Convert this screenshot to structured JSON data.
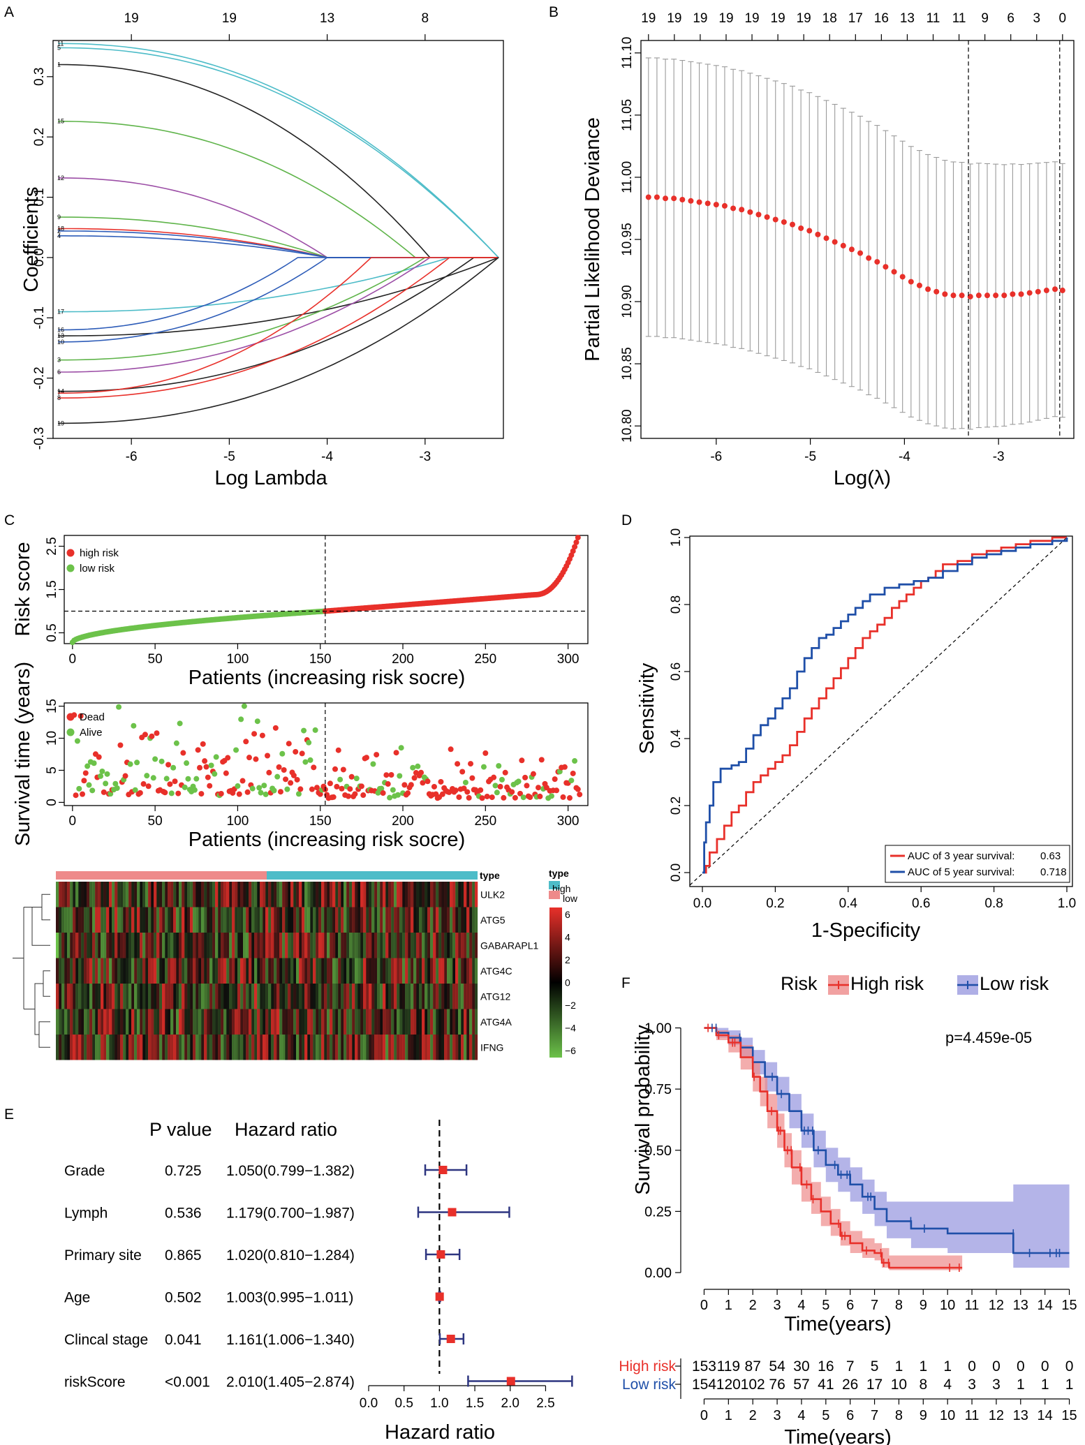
{
  "panels": {
    "a": "A",
    "b": "B",
    "c": "C",
    "d": "D",
    "e": "E",
    "f": "F"
  },
  "colors": {
    "red": "#e8302a",
    "green": "#6cc24a",
    "blue": "#1f4fa8",
    "cyan": "#4dbcc8",
    "pink": "#ee8a8a",
    "lavender": "#9b9be0",
    "grey": "#9a9a9a",
    "forest_navy": "#2d3580"
  },
  "chart_data": [
    {
      "id": "A",
      "type": "line",
      "title": "",
      "xlabel": "Log Lambda",
      "ylabel": "Coefficients",
      "xlim": [
        -6.8,
        -2.2
      ],
      "ylim": [
        -0.3,
        0.36
      ],
      "xticks": [
        "-6",
        "-5",
        "-4",
        "-3"
      ],
      "yticks": [
        "-0.3",
        "-0.2",
        "-0.1",
        "0.0",
        "0.1",
        "0.2",
        "0.3"
      ],
      "top_axis_ticks": [
        "19",
        "19",
        "13",
        "8"
      ],
      "series": [
        {
          "label": "11",
          "color": "#4dbcc8",
          "start": 0.355,
          "zero_at": -2.25
        },
        {
          "label": "5",
          "color": "#4dbcc8",
          "start": 0.348,
          "zero_at": -2.25
        },
        {
          "label": "1",
          "color": "#222222",
          "start": 0.32,
          "zero_at": -2.95
        },
        {
          "label": "15",
          "color": "#5fb44a",
          "start": 0.226,
          "zero_at": -3.1
        },
        {
          "label": "12",
          "color": "#9c4ea6",
          "start": 0.132,
          "zero_at": -4.0
        },
        {
          "label": "9",
          "color": "#5fb44a",
          "start": 0.067,
          "zero_at": -4.0
        },
        {
          "label": "18",
          "color": "#e8302a",
          "start": 0.048,
          "zero_at": -4.0
        },
        {
          "label": "2",
          "color": "#2d5cb8",
          "start": 0.044,
          "zero_at": -4.0
        },
        {
          "label": "4",
          "color": "#2d5cb8",
          "start": 0.036,
          "zero_at": -4.0
        },
        {
          "label": "17",
          "color": "#4dbcc8",
          "start": -0.09,
          "zero_at": -2.75
        },
        {
          "label": "16",
          "color": "#2d5cb8",
          "start": -0.12,
          "zero_at": -4.3
        },
        {
          "label": "13",
          "color": "#222222",
          "start": -0.13,
          "zero_at": -2.25
        },
        {
          "label": "10",
          "color": "#2d5cb8",
          "start": -0.14,
          "zero_at": -4.0
        },
        {
          "label": "3",
          "color": "#5fb44a",
          "start": -0.17,
          "zero_at": -3.0
        },
        {
          "label": "6",
          "color": "#9c4ea6",
          "start": -0.19,
          "zero_at": -2.95
        },
        {
          "label": "14",
          "color": "#222222",
          "start": -0.222,
          "zero_at": -2.5
        },
        {
          "label": "7",
          "color": "#e8302a",
          "start": -0.225,
          "zero_at": -3.55
        },
        {
          "label": "8",
          "color": "#e8302a",
          "start": -0.233,
          "zero_at": -2.75
        },
        {
          "label": "19",
          "color": "#222222",
          "start": -0.275,
          "zero_at": -2.25
        }
      ]
    },
    {
      "id": "B",
      "type": "scatter",
      "xlabel": "Log(λ)",
      "ylabel": "Partial Likelihood Deviance",
      "xlim": [
        -6.8,
        -2.2
      ],
      "ylim": [
        10.79,
        11.11
      ],
      "xticks": [
        "-6",
        "-5",
        "-4",
        "-3"
      ],
      "yticks": [
        "10.80",
        "10.85",
        "10.90",
        "10.95",
        "11.00",
        "11.05",
        "11.10"
      ],
      "top_axis_ticks": [
        "19",
        "19",
        "19",
        "19",
        "19",
        "19",
        "19",
        "18",
        "17",
        "16",
        "13",
        "11",
        "11",
        "9",
        "6",
        "3",
        "0"
      ],
      "lambda_min": -3.32,
      "lambda_1se": -2.35,
      "x": [
        -6.72,
        -6.63,
        -6.54,
        -6.45,
        -6.36,
        -6.27,
        -6.18,
        -6.09,
        -6.0,
        -5.91,
        -5.82,
        -5.73,
        -5.64,
        -5.55,
        -5.46,
        -5.37,
        -5.28,
        -5.19,
        -5.1,
        -5.01,
        -4.92,
        -4.83,
        -4.74,
        -4.65,
        -4.56,
        -4.47,
        -4.38,
        -4.29,
        -4.2,
        -4.11,
        -4.02,
        -3.93,
        -3.84,
        -3.75,
        -3.66,
        -3.57,
        -3.48,
        -3.39,
        -3.3,
        -3.21,
        -3.12,
        -3.03,
        -2.94,
        -2.85,
        -2.76,
        -2.67,
        -2.58,
        -2.49,
        -2.4,
        -2.32
      ],
      "mean": [
        10.984,
        10.984,
        10.983,
        10.983,
        10.982,
        10.981,
        10.98,
        10.979,
        10.978,
        10.977,
        10.975,
        10.974,
        10.972,
        10.97,
        10.968,
        10.966,
        10.964,
        10.962,
        10.959,
        10.957,
        10.954,
        10.951,
        10.948,
        10.945,
        10.942,
        10.939,
        10.935,
        10.932,
        10.928,
        10.924,
        10.92,
        10.916,
        10.913,
        10.91,
        10.908,
        10.906,
        10.905,
        10.905,
        10.904,
        10.905,
        10.905,
        10.905,
        10.905,
        10.906,
        10.906,
        10.907,
        10.908,
        10.909,
        10.91,
        10.909
      ]
    },
    {
      "id": "C1",
      "type": "scatter",
      "xlabel": "Patients (increasing risk socre)",
      "ylabel": "Risk score",
      "xlim": [
        -5,
        312
      ],
      "ylim": [
        0.25,
        2.75
      ],
      "xticks": [
        "0",
        "50",
        "100",
        "150",
        "200",
        "250",
        "300"
      ],
      "yticks": [
        "0.5",
        "1.5",
        "2.5"
      ],
      "cutoff_index": 153,
      "cutoff_value": 1.0,
      "legend": [
        "high risk",
        "low risk"
      ]
    },
    {
      "id": "C2",
      "type": "scatter",
      "xlabel": "Patients (increasing risk socre)",
      "ylabel": "Survival time (years)",
      "xlim": [
        -5,
        312
      ],
      "ylim": [
        -0.5,
        15.5
      ],
      "xticks": [
        "0",
        "50",
        "100",
        "150",
        "200",
        "250",
        "300"
      ],
      "yticks": [
        "0",
        "5",
        "10",
        "15"
      ],
      "legend": [
        "Dead",
        "Alive"
      ]
    },
    {
      "id": "C3",
      "type": "heatmap",
      "genes": [
        "ULK2",
        "ATG5",
        "GABARAPL1",
        "ATG4C",
        "ATG12",
        "ATG4A",
        "IFNG"
      ],
      "legend_title": "type",
      "legend_levels": [
        "high",
        "low"
      ],
      "scale_ticks": [
        "6",
        "4",
        "2",
        "0",
        "−2",
        "−4",
        "−6"
      ]
    },
    {
      "id": "D",
      "type": "line",
      "xlabel": "1-Specificity",
      "ylabel": "Sensitivity",
      "xlim": [
        0,
        1
      ],
      "ylim": [
        0,
        1
      ],
      "xticks": [
        "0.0",
        "0.2",
        "0.4",
        "0.6",
        "0.8",
        "1.0"
      ],
      "yticks": [
        "0.0",
        "0.2",
        "0.4",
        "0.6",
        "0.8",
        "1.0"
      ],
      "series": [
        {
          "name": "AUC of 3 year survival:",
          "auc": "0.63",
          "color": "#e8302a",
          "points": [
            [
              0,
              0
            ],
            [
              0.01,
              0.02
            ],
            [
              0.02,
              0.06
            ],
            [
              0.04,
              0.1
            ],
            [
              0.06,
              0.14
            ],
            [
              0.08,
              0.18
            ],
            [
              0.1,
              0.2
            ],
            [
              0.12,
              0.24
            ],
            [
              0.14,
              0.27
            ],
            [
              0.16,
              0.29
            ],
            [
              0.18,
              0.31
            ],
            [
              0.2,
              0.33
            ],
            [
              0.22,
              0.35
            ],
            [
              0.24,
              0.38
            ],
            [
              0.26,
              0.42
            ],
            [
              0.28,
              0.46
            ],
            [
              0.3,
              0.49
            ],
            [
              0.32,
              0.52
            ],
            [
              0.34,
              0.55
            ],
            [
              0.36,
              0.58
            ],
            [
              0.38,
              0.61
            ],
            [
              0.4,
              0.64
            ],
            [
              0.42,
              0.67
            ],
            [
              0.44,
              0.7
            ],
            [
              0.46,
              0.72
            ],
            [
              0.48,
              0.74
            ],
            [
              0.5,
              0.76
            ],
            [
              0.52,
              0.79
            ],
            [
              0.54,
              0.81
            ],
            [
              0.56,
              0.83
            ],
            [
              0.58,
              0.85
            ],
            [
              0.6,
              0.87
            ],
            [
              0.62,
              0.88
            ],
            [
              0.64,
              0.9
            ],
            [
              0.66,
              0.92
            ],
            [
              0.7,
              0.93
            ],
            [
              0.74,
              0.95
            ],
            [
              0.78,
              0.96
            ],
            [
              0.82,
              0.97
            ],
            [
              0.86,
              0.98
            ],
            [
              0.9,
              0.99
            ],
            [
              0.96,
              1.0
            ],
            [
              1.0,
              1.0
            ]
          ]
        },
        {
          "name": "AUC of 5 year survival:",
          "auc": "0.718",
          "color": "#1f4fa8",
          "points": [
            [
              0,
              0
            ],
            [
              0.005,
              0.09
            ],
            [
              0.01,
              0.15
            ],
            [
              0.02,
              0.2
            ],
            [
              0.03,
              0.27
            ],
            [
              0.05,
              0.31
            ],
            [
              0.08,
              0.32
            ],
            [
              0.1,
              0.33
            ],
            [
              0.12,
              0.37
            ],
            [
              0.14,
              0.41
            ],
            [
              0.16,
              0.44
            ],
            [
              0.18,
              0.46
            ],
            [
              0.2,
              0.49
            ],
            [
              0.22,
              0.52
            ],
            [
              0.24,
              0.55
            ],
            [
              0.26,
              0.6
            ],
            [
              0.28,
              0.64
            ],
            [
              0.3,
              0.67
            ],
            [
              0.32,
              0.7
            ],
            [
              0.34,
              0.71
            ],
            [
              0.36,
              0.73
            ],
            [
              0.38,
              0.75
            ],
            [
              0.4,
              0.77
            ],
            [
              0.42,
              0.79
            ],
            [
              0.44,
              0.81
            ],
            [
              0.46,
              0.83
            ],
            [
              0.5,
              0.85
            ],
            [
              0.54,
              0.86
            ],
            [
              0.58,
              0.87
            ],
            [
              0.62,
              0.88
            ],
            [
              0.66,
              0.9
            ],
            [
              0.7,
              0.92
            ],
            [
              0.74,
              0.94
            ],
            [
              0.78,
              0.95
            ],
            [
              0.82,
              0.96
            ],
            [
              0.86,
              0.97
            ],
            [
              0.9,
              0.98
            ],
            [
              0.96,
              0.99
            ],
            [
              1.0,
              1.0
            ]
          ]
        }
      ]
    },
    {
      "id": "E",
      "type": "forest",
      "col_pvalue": "P value",
      "col_hr": "Hazard ratio",
      "xlabel": "Hazard ratio",
      "xlim": [
        0,
        2.9
      ],
      "xticks": [
        "0.0",
        "0.5",
        "1.0",
        "1.5",
        "2.0",
        "2.5"
      ],
      "rows": [
        {
          "label": "Grade",
          "p": "0.725",
          "hr_text": "1.050(0.799−1.382)",
          "hr": 1.05,
          "lo": 0.799,
          "hi": 1.382
        },
        {
          "label": "Lymph",
          "p": "0.536",
          "hr_text": "1.179(0.700−1.987)",
          "hr": 1.179,
          "lo": 0.7,
          "hi": 1.987
        },
        {
          "label": "Primary site",
          "p": "0.865",
          "hr_text": "1.020(0.810−1.284)",
          "hr": 1.02,
          "lo": 0.81,
          "hi": 1.284
        },
        {
          "label": "Age",
          "p": "0.502",
          "hr_text": "1.003(0.995−1.011)",
          "hr": 1.003,
          "lo": 0.995,
          "hi": 1.011
        },
        {
          "label": "Clincal stage",
          "p": "0.041",
          "hr_text": "1.161(1.006−1.340)",
          "hr": 1.161,
          "lo": 1.006,
          "hi": 1.34
        },
        {
          "label": "riskScore",
          "p": "<0.001",
          "hr_text": "2.010(1.405−2.874)",
          "hr": 2.01,
          "lo": 1.405,
          "hi": 2.874
        }
      ]
    },
    {
      "id": "F",
      "type": "line",
      "legend_title": "Risk",
      "legend": [
        "High risk",
        "Low risk"
      ],
      "pvalue": "p=4.459e-05",
      "xlabel": "Time(years)",
      "ylabel": "Survival probability",
      "xlim": [
        -0.3,
        15.3
      ],
      "ylim": [
        -0.02,
        1.03
      ],
      "xticks": [
        "0",
        "1",
        "2",
        "3",
        "4",
        "5",
        "6",
        "7",
        "8",
        "9",
        "10",
        "11",
        "12",
        "13",
        "14",
        "15"
      ],
      "yticks": [
        "0.00",
        "0.25",
        "0.50",
        "0.75",
        "1.00"
      ],
      "high": {
        "t": [
          0,
          0.5,
          1,
          1.5,
          2,
          2.3,
          2.6,
          3.0,
          3.3,
          3.6,
          4.0,
          4.4,
          4.8,
          5.2,
          5.6,
          6.0,
          6.5,
          7.0,
          7.3,
          7.6,
          8.5,
          9.5,
          10.6
        ],
        "s": [
          1.0,
          0.97,
          0.94,
          0.88,
          0.8,
          0.74,
          0.66,
          0.58,
          0.5,
          0.43,
          0.36,
          0.3,
          0.25,
          0.2,
          0.15,
          0.12,
          0.09,
          0.08,
          0.04,
          0.02,
          0.02,
          0.02,
          0.02
        ],
        "lo": [
          1.0,
          0.95,
          0.9,
          0.83,
          0.74,
          0.68,
          0.59,
          0.51,
          0.43,
          0.36,
          0.29,
          0.24,
          0.19,
          0.15,
          0.11,
          0.08,
          0.06,
          0.05,
          0.02,
          0.01,
          0.01,
          0.01,
          0.01
        ],
        "hi": [
          1.0,
          0.99,
          0.97,
          0.93,
          0.86,
          0.8,
          0.73,
          0.65,
          0.57,
          0.5,
          0.43,
          0.37,
          0.31,
          0.26,
          0.21,
          0.17,
          0.14,
          0.12,
          0.1,
          0.07,
          0.07,
          0.07,
          0.07
        ]
      },
      "low": {
        "t": [
          0,
          0.5,
          1,
          1.5,
          2,
          2.5,
          3.0,
          3.5,
          4.0,
          4.5,
          5.0,
          5.5,
          6.0,
          6.5,
          7.0,
          7.5,
          8.5,
          10.0,
          12.6,
          12.7,
          15.0
        ],
        "s": [
          1.0,
          0.98,
          0.96,
          0.92,
          0.86,
          0.8,
          0.73,
          0.66,
          0.58,
          0.5,
          0.44,
          0.4,
          0.36,
          0.31,
          0.26,
          0.21,
          0.18,
          0.16,
          0.16,
          0.08,
          0.08
        ],
        "lo": [
          1.0,
          0.96,
          0.93,
          0.88,
          0.81,
          0.74,
          0.66,
          0.59,
          0.51,
          0.43,
          0.37,
          0.33,
          0.29,
          0.24,
          0.19,
          0.14,
          0.1,
          0.08,
          0.08,
          0.02,
          0.02
        ],
        "hi": [
          1.0,
          1.0,
          0.99,
          0.96,
          0.91,
          0.86,
          0.8,
          0.73,
          0.65,
          0.58,
          0.51,
          0.47,
          0.43,
          0.38,
          0.33,
          0.29,
          0.29,
          0.29,
          0.29,
          0.36,
          0.36
        ]
      }
    },
    {
      "id": "F_table",
      "type": "table",
      "xlabel": "Time(years)",
      "rows": [
        {
          "label": "High risk",
          "color": "#e8302a",
          "values": [
            "153",
            "119",
            "87",
            "54",
            "30",
            "16",
            "7",
            "5",
            "1",
            "1",
            "1",
            "0",
            "0",
            "0",
            "0",
            "0"
          ]
        },
        {
          "label": "Low risk",
          "color": "#1f4fa8",
          "values": [
            "154",
            "120",
            "102",
            "76",
            "57",
            "41",
            "26",
            "17",
            "10",
            "8",
            "4",
            "3",
            "3",
            "1",
            "1",
            "1"
          ]
        }
      ]
    }
  ]
}
